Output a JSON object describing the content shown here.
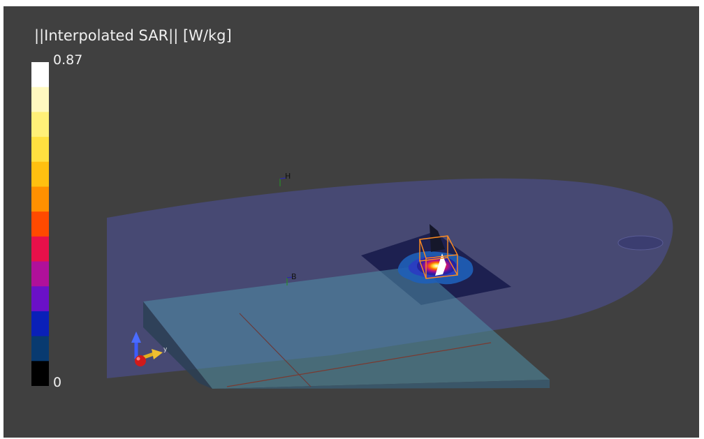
{
  "colorbar": {
    "title": "||Interpolated SAR|| [W/kg]",
    "max_label": "0.87",
    "min_label": "0",
    "colors": [
      "#ffffff",
      "#fff9c0",
      "#fff078",
      "#ffe040",
      "#ffc010",
      "#ff9000",
      "#ff4a00",
      "#e8104a",
      "#b0109a",
      "#6a10c8",
      "#0a20b8",
      "#083a70",
      "#000000"
    ]
  },
  "markers": {
    "h_label": "H",
    "b_label": "B"
  },
  "axes": {
    "y_label": "y"
  }
}
